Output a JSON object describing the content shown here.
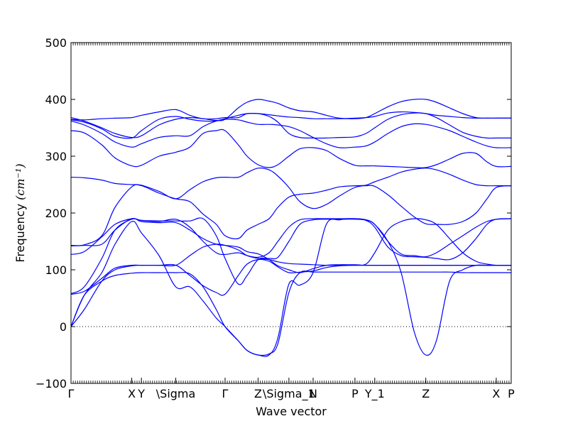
{
  "chart_data": {
    "type": "line",
    "title": "",
    "xlabel": "Wave vector",
    "ylabel": "Frequency",
    "ylabel_unit": "(cm⁻¹)",
    "ylim": [
      -100,
      500
    ],
    "yticks": [
      -100,
      0,
      100,
      200,
      300,
      400,
      500
    ],
    "xlim": [
      0,
      100
    ],
    "grid": false,
    "legend": "none",
    "zero_line": 0,
    "line_color": "#0000ff",
    "high_symmetry_points": [
      {
        "label": "Γ",
        "x": 0
      },
      {
        "label": "X",
        "x": 13.8
      },
      {
        "label": "Y",
        "x": 16.0
      },
      {
        "label": "\\Sigma",
        "x": 23.8
      },
      {
        "label": "Γ",
        "x": 35.0
      },
      {
        "label": "Z",
        "x": 42.5
      },
      {
        "label": "\\Sigma_1",
        "x": 49.5
      },
      {
        "label": "N",
        "x": 55.0
      },
      {
        "label": "P",
        "x": 64.5
      },
      {
        "label": "Y_1",
        "x": 69.0
      },
      {
        "label": "Z",
        "x": 80.6
      },
      {
        "label": "X",
        "x": 96.6
      },
      {
        "label": "P",
        "x": 100
      }
    ],
    "series": [
      {
        "x": [
          0,
          3,
          7,
          10,
          13.8,
          16,
          20,
          23.8,
          27,
          30,
          33,
          35,
          38,
          40,
          42.5,
          45,
          47,
          49.5,
          52,
          55,
          58,
          61,
          64.5,
          67,
          69,
          72,
          75,
          78,
          80.6,
          83,
          86,
          89,
          92,
          94.5,
          96.6,
          100
        ],
        "y": [
          365,
          364,
          366,
          367,
          368,
          372,
          378,
          382,
          372,
          366,
          366,
          368,
          368,
          375,
          375,
          373,
          371,
          369,
          368,
          366,
          366,
          366,
          367,
          368,
          370,
          376,
          378,
          377,
          375,
          372,
          370,
          368,
          367,
          367,
          367,
          367
        ]
      },
      {
        "x": [
          0,
          3,
          7,
          10,
          13.8,
          16,
          20,
          23.8,
          27,
          30,
          33,
          35,
          38,
          40,
          42.5,
          45,
          47,
          49.5,
          52,
          55,
          58,
          61,
          64.5,
          67,
          69,
          72,
          75,
          78,
          80.6,
          83,
          86,
          89,
          92,
          94.5,
          96.6,
          100
        ],
        "y": [
          368,
          362,
          350,
          340,
          333,
          336,
          355,
          365,
          368,
          366,
          363,
          365,
          385,
          395,
          400,
          397,
          393,
          385,
          380,
          378,
          372,
          367,
          366,
          368,
          375,
          387,
          396,
          400,
          400,
          395,
          385,
          375,
          368,
          367,
          367,
          367
        ]
      },
      {
        "x": [
          0,
          3,
          7,
          10,
          13.8,
          16,
          20,
          23.8,
          27,
          30,
          33,
          35,
          38,
          40,
          42.5,
          45,
          47,
          49.5,
          52,
          55,
          58,
          61,
          64.5,
          67,
          69,
          72,
          75,
          78,
          80.6,
          83,
          86,
          89,
          92,
          94.5,
          96.6,
          100
        ],
        "y": [
          364,
          360,
          348,
          335,
          332,
          345,
          365,
          370,
          365,
          362,
          362,
          366,
          372,
          375,
          375,
          370,
          360,
          340,
          333,
          332,
          332,
          333,
          334,
          340,
          350,
          365,
          373,
          376,
          375,
          368,
          355,
          342,
          335,
          332,
          332,
          332
        ]
      },
      {
        "x": [
          0,
          3,
          7,
          10,
          13.8,
          16,
          20,
          23.8,
          27,
          30,
          33,
          35,
          38,
          40,
          42.5,
          45,
          47,
          49.5,
          52,
          55,
          58,
          61,
          64.5,
          67,
          69,
          72,
          75,
          78,
          80.6,
          83,
          86,
          89,
          92,
          94.5,
          96.6,
          100
        ],
        "y": [
          362,
          355,
          340,
          325,
          316,
          322,
          333,
          336,
          336,
          352,
          362,
          365,
          364,
          360,
          356,
          356,
          355,
          352,
          345,
          333,
          322,
          315,
          316,
          318,
          325,
          340,
          352,
          357,
          356,
          352,
          345,
          335,
          325,
          318,
          315,
          315
        ]
      },
      {
        "x": [
          0,
          3,
          7,
          10,
          13.8,
          16,
          20,
          23.8,
          27,
          30,
          33,
          35,
          38,
          40,
          42.5,
          45,
          47,
          49.5,
          52,
          55,
          58,
          61,
          64.5,
          67,
          69,
          72,
          75,
          78,
          80.6,
          83,
          86,
          89,
          92,
          94.5,
          96.6,
          100
        ],
        "y": [
          345,
          341,
          320,
          297,
          283,
          284,
          300,
          307,
          316,
          340,
          345,
          345,
          320,
          300,
          285,
          280,
          285,
          300,
          313,
          315,
          310,
          296,
          284,
          283,
          283,
          282,
          281,
          280,
          280,
          285,
          295,
          305,
          305,
          290,
          282,
          282
        ]
      },
      {
        "x": [
          0,
          3,
          7,
          10,
          13.8,
          16,
          20,
          23.8,
          27,
          30,
          33,
          35,
          38,
          40,
          42.5,
          45,
          47,
          49.5,
          52,
          55,
          58,
          61,
          64.5,
          67,
          69,
          72,
          75,
          78,
          80.6,
          83,
          86,
          89,
          92,
          94.5,
          96.6,
          100
        ],
        "y": [
          263,
          262,
          258,
          252,
          250,
          249,
          238,
          225,
          241,
          255,
          262,
          263,
          263,
          271,
          279,
          276,
          265,
          245,
          220,
          208,
          215,
          230,
          245,
          248,
          247,
          232,
          212,
          193,
          181,
          180,
          180,
          185,
          200,
          225,
          245,
          248
        ]
      },
      {
        "x": [
          0,
          3,
          7,
          10,
          13.8,
          16,
          20,
          23.8,
          27,
          30,
          33,
          35,
          38,
          40,
          42.5,
          45,
          47,
          49.5,
          52,
          55,
          58,
          61,
          64.5,
          67,
          69,
          72,
          75,
          78,
          80.6,
          83,
          86,
          89,
          92,
          94.5,
          96.6,
          100
        ],
        "y": [
          143,
          144,
          160,
          210,
          246,
          248,
          235,
          225,
          220,
          198,
          180,
          160,
          155,
          170,
          180,
          190,
          210,
          228,
          233,
          235,
          240,
          246,
          248,
          249,
          255,
          263,
          272,
          277,
          279,
          276,
          268,
          258,
          250,
          248,
          248,
          248
        ]
      },
      {
        "x": [
          0,
          3,
          7,
          10,
          13.8,
          16,
          20,
          23.8,
          27,
          30,
          33,
          35,
          38,
          40,
          42.5,
          45,
          47,
          49.5,
          52,
          55,
          58,
          61,
          64.5,
          67,
          69,
          72,
          75,
          78,
          80.6,
          83,
          86,
          89,
          92,
          94.5,
          96.6,
          100
        ],
        "y": [
          127,
          132,
          158,
          180,
          190,
          187,
          185,
          189,
          175,
          150,
          130,
          127,
          130,
          125,
          122,
          130,
          150,
          175,
          188,
          190,
          190,
          190,
          190,
          188,
          180,
          150,
          128,
          125,
          123,
          130,
          145,
          160,
          175,
          185,
          189,
          190
        ]
      },
      {
        "x": [
          0,
          3,
          7,
          10,
          13.8,
          16,
          20,
          23.8,
          27,
          30,
          33,
          35,
          38,
          40,
          42.5,
          45,
          47,
          49.5,
          52,
          55,
          58,
          61,
          64.5,
          67,
          69,
          72,
          75,
          78,
          80.6,
          83,
          86,
          89,
          92,
          94.5,
          96.6,
          100
        ],
        "y": [
          58,
          70,
          120,
          170,
          189,
          187,
          186,
          186,
          186,
          190,
          160,
          120,
          75,
          90,
          118,
          120,
          122,
          150,
          180,
          188,
          189,
          189,
          189,
          187,
          175,
          140,
          125,
          123,
          122,
          120,
          118,
          130,
          155,
          180,
          189,
          190
        ]
      },
      {
        "x": [
          0,
          3,
          7,
          10,
          13.8,
          16,
          20,
          23.8,
          27,
          30,
          33,
          35,
          38,
          40,
          42.5,
          45,
          47,
          49.5,
          52,
          55,
          58,
          61,
          64.5,
          67,
          69,
          72,
          75,
          78,
          80.6,
          83,
          86,
          89,
          92,
          94.5,
          96.6,
          100
        ],
        "y": [
          142,
          143,
          145,
          170,
          190,
          185,
          183,
          183,
          170,
          155,
          145,
          143,
          140,
          132,
          128,
          118,
          107,
          100,
          95,
          102,
          108,
          109,
          109,
          110,
          130,
          170,
          185,
          190,
          188,
          180,
          155,
          130,
          115,
          110,
          108,
          108
        ]
      },
      {
        "x": [
          0,
          3,
          7,
          10,
          13.8,
          16,
          20,
          23.8,
          27,
          30,
          33,
          35,
          38,
          40,
          42.5,
          45,
          47,
          49.5,
          52,
          55,
          58,
          61,
          64.5,
          67,
          69,
          72,
          75,
          78,
          80.6,
          83,
          86,
          89,
          92,
          94.5,
          96.6,
          100
        ],
        "y": [
          57,
          62,
          85,
          103,
          108,
          108,
          108,
          108,
          125,
          140,
          145,
          143,
          135,
          125,
          120,
          118,
          114,
          111,
          110,
          109,
          108,
          108,
          108,
          108,
          108,
          108,
          108,
          108,
          108,
          108,
          108,
          108,
          108,
          108,
          108,
          108
        ]
      },
      {
        "x": [
          0,
          3,
          7,
          10,
          13.8,
          16,
          20,
          23.8,
          27,
          30,
          33,
          35,
          38,
          40,
          42.5,
          45,
          47,
          49.5,
          52,
          55,
          58,
          61,
          64.5,
          67,
          69,
          72,
          75,
          78,
          80.6,
          83,
          86,
          89,
          92,
          94.5,
          96.6,
          100
        ],
        "y": [
          0,
          30,
          80,
          100,
          107,
          108,
          108,
          108,
          90,
          72,
          60,
          57,
          90,
          110,
          118,
          115,
          105,
          95,
          96,
          98,
          104,
          107,
          108,
          108,
          108,
          108,
          108,
          108,
          108,
          108,
          108,
          108,
          108,
          108,
          108,
          108
        ]
      },
      {
        "x": [
          0,
          3,
          7,
          10,
          13.8,
          16,
          20,
          23.8,
          27,
          30,
          33,
          35,
          38,
          40,
          42.5,
          45,
          47,
          49.5,
          52,
          55,
          58,
          61,
          64.5,
          67,
          69,
          72,
          75,
          78,
          80.6,
          83,
          86,
          89,
          92,
          94.5,
          96.6,
          100
        ],
        "y": [
          0,
          55,
          80,
          90,
          94,
          95,
          95,
          95,
          93,
          70,
          30,
          0,
          -25,
          -42,
          -50,
          -48,
          -30,
          60,
          95,
          96,
          96,
          96,
          96,
          96,
          96,
          96,
          96,
          96,
          96,
          96,
          96,
          95,
          95,
          95,
          95,
          95
        ]
      },
      {
        "x": [
          0,
          3,
          7,
          10,
          13.8,
          16,
          20,
          23.8,
          27,
          30,
          33,
          35,
          38,
          40,
          42.5,
          45,
          47,
          49.5,
          52,
          55,
          58,
          61,
          64.5,
          67,
          69,
          72,
          75,
          78,
          80.6,
          83,
          86,
          89,
          92,
          94.5,
          96.6,
          100
        ],
        "y": [
          0,
          55,
          95,
          145,
          185,
          165,
          125,
          70,
          70,
          45,
          15,
          0,
          -25,
          -42,
          -50,
          -50,
          -20,
          75,
          73,
          95,
          180,
          188,
          190,
          188,
          180,
          150,
          95,
          -10,
          -50,
          -25,
          80,
          100,
          108,
          108,
          108,
          108
        ]
      }
    ]
  }
}
